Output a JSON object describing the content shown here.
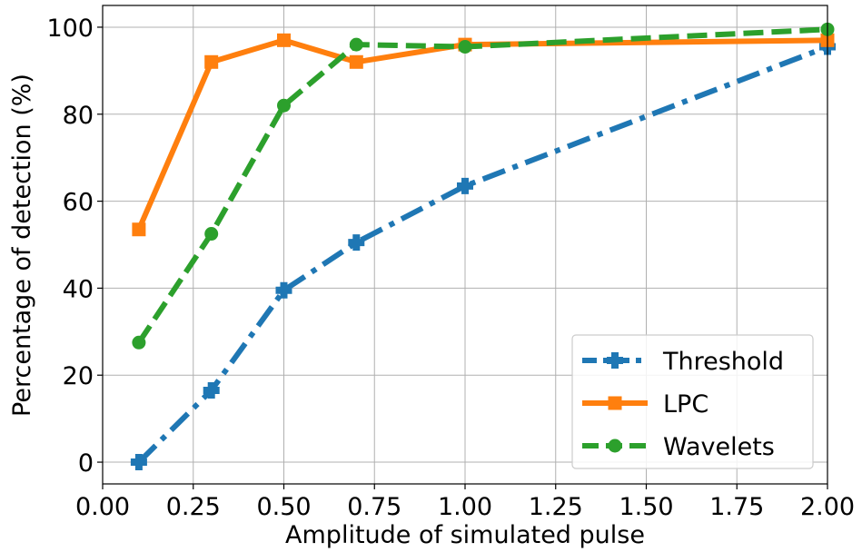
{
  "chart_data": {
    "type": "line",
    "title": "",
    "xlabel": "Amplitude of simulated pulse",
    "ylabel": "Percentage of detection (%)",
    "xlim": [
      0.0,
      2.0
    ],
    "ylim": [
      -5,
      105
    ],
    "x_ticks": [
      "0.00",
      "0.25",
      "0.50",
      "0.75",
      "1.00",
      "1.25",
      "1.50",
      "1.75",
      "2.00"
    ],
    "y_ticks": [
      "0",
      "20",
      "40",
      "60",
      "80",
      "100"
    ],
    "grid": true,
    "legend_position": "lower-right",
    "series": [
      {
        "name": "Threshold",
        "color": "#1f77b4",
        "line_style": "dashdot",
        "marker": "plus",
        "x": [
          0.1,
          0.3,
          0.5,
          0.7,
          1.0,
          2.0
        ],
        "y": [
          0,
          16.5,
          39.5,
          50.5,
          63.5,
          95.5
        ]
      },
      {
        "name": "LPC",
        "color": "#ff7f0e",
        "line_style": "solid",
        "marker": "square",
        "x": [
          0.1,
          0.3,
          0.5,
          0.7,
          1.0,
          2.0
        ],
        "y": [
          53.5,
          92,
          97,
          92,
          96,
          97
        ]
      },
      {
        "name": "Wavelets",
        "color": "#2ca02c",
        "line_style": "dashed",
        "marker": "circle",
        "x": [
          0.1,
          0.3,
          0.5,
          0.7,
          1.0,
          2.0
        ],
        "y": [
          27.5,
          52.5,
          82,
          96,
          95.5,
          99.5
        ]
      }
    ]
  }
}
